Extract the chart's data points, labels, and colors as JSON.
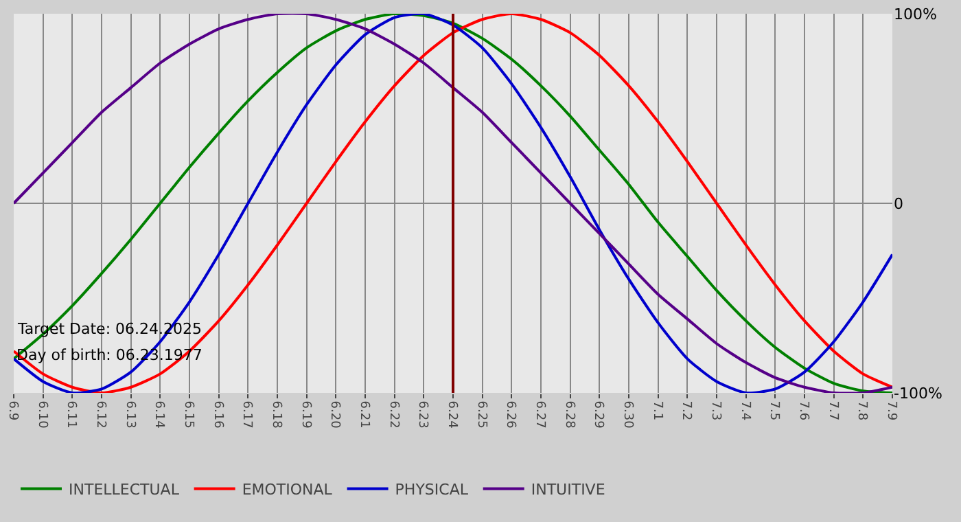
{
  "chart_data": {
    "type": "line",
    "categories": [
      "6.9",
      "6.10",
      "6.11",
      "6.12",
      "6.13",
      "6.14",
      "6.15",
      "6.16",
      "6.17",
      "6.18",
      "6.19",
      "6.20",
      "6.21",
      "6.22",
      "6.23",
      "6.24",
      "6.25",
      "6.26",
      "6.27",
      "6.28",
      "6.29",
      "6.30",
      "7.1",
      "7.2",
      "7.3",
      "7.4",
      "7.5",
      "7.6",
      "7.7",
      "7.8",
      "7.9"
    ],
    "series": [
      {
        "name": "INTELLECTUAL",
        "color": "#008000",
        "values": [
          -82,
          -69,
          -54,
          -37,
          -19,
          0,
          19,
          37,
          54,
          69,
          82,
          91,
          97,
          100,
          99,
          95,
          87,
          76,
          62,
          46,
          28,
          10,
          -10,
          -28,
          -46,
          -62,
          -76,
          -87,
          -95,
          -99,
          -100
        ]
      },
      {
        "name": "EMOTIONAL",
        "color": "#ff0000",
        "values": [
          -78,
          -90,
          -97,
          -100,
          -97,
          -90,
          -78,
          -62,
          -43,
          -22,
          0,
          22,
          43,
          62,
          78,
          90,
          97,
          100,
          97,
          90,
          78,
          62,
          43,
          22,
          0,
          -22,
          -43,
          -62,
          -78,
          -90,
          -97
        ]
      },
      {
        "name": "PHYSICAL",
        "color": "#0000cc",
        "values": [
          -82,
          -94,
          -100,
          -98,
          -89,
          -73,
          -52,
          -27,
          0,
          27,
          52,
          73,
          89,
          98,
          100,
          94,
          82,
          63,
          40,
          14,
          -14,
          -40,
          -63,
          -82,
          -94,
          -100,
          -98,
          -89,
          -73,
          -52,
          -27
        ]
      },
      {
        "name": "INTUITIVE",
        "color": "#550088",
        "values": [
          0,
          16,
          32,
          48,
          61,
          74,
          84,
          92,
          97,
          100,
          100,
          97,
          92,
          84,
          74,
          61,
          48,
          32,
          16,
          0,
          -16,
          -32,
          -48,
          -61,
          -74,
          -84,
          -92,
          -97,
          -100,
          -100,
          -97
        ]
      }
    ],
    "ylim": [
      -100,
      100
    ],
    "yticks": [
      {
        "value": 100,
        "label": "100%"
      },
      0,
      {
        "value": -100,
        "label": "-100%"
      }
    ],
    "grid": true,
    "legend": "bottom left",
    "marker": "none",
    "line_style": "solid",
    "ref_lines": [
      {
        "axis": "x",
        "value": "6.24",
        "color": "#800000"
      }
    ],
    "annotations": [
      "Target Date: 06.24.2025",
      "Day of birth: 06.23.1977"
    ]
  }
}
